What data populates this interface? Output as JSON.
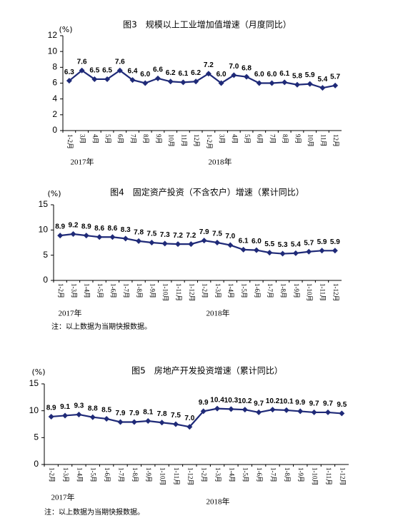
{
  "chart_data": [
    {
      "type": "line",
      "title": "图3　规模以上工业增加值增速（月度同比）",
      "y_unit": "(%)",
      "categories": [
        "1-2月",
        "3月",
        "4月",
        "5月",
        "6月",
        "7月",
        "8月",
        "9月",
        "10月",
        "11月",
        "12月",
        "1-2月",
        "3月",
        "4月",
        "5月",
        "6月",
        "7月",
        "8月",
        "9月",
        "10月",
        "11月",
        "12月"
      ],
      "year_labels": [
        "2017年",
        "2018年"
      ],
      "values": [
        6.3,
        7.6,
        6.5,
        6.5,
        7.6,
        6.4,
        6.0,
        6.6,
        6.2,
        6.1,
        6.2,
        7.2,
        6.0,
        7.0,
        6.8,
        6.0,
        6.0,
        6.1,
        5.8,
        5.9,
        5.4,
        5.7
      ],
      "value_labels": [
        "6.3",
        "7.6",
        "6.5",
        "6.5",
        "7.6",
        "6.4",
        "6.0",
        "6.6",
        "6.2",
        "6.1",
        "6.2",
        "7.2",
        "6.0",
        "7.0",
        "6.8",
        "6.0",
        "6.0",
        "6.1",
        "5.8",
        "5.9",
        "5.4",
        "5.7"
      ],
      "color": "#1f2a78",
      "ylim": [
        0,
        12
      ],
      "yticks": [
        0,
        2,
        4,
        6,
        8,
        10,
        12
      ]
    },
    {
      "type": "line",
      "title": "图4　固定资产投资（不含农户）增速（累计同比）",
      "y_unit": "(%)",
      "categories": [
        "1-2月",
        "1-3月",
        "1-4月",
        "1-5月",
        "1-6月",
        "1-7月",
        "1-8月",
        "1-9月",
        "1-10月",
        "1-11月",
        "1-12月",
        "1-2月",
        "1-3月",
        "1-4月",
        "1-5月",
        "1-6月",
        "1-7月",
        "1-8月",
        "1-9月",
        "1-10月",
        "1-11月",
        "1-12月"
      ],
      "year_labels": [
        "2017年",
        "2018年"
      ],
      "values": [
        8.9,
        9.2,
        8.9,
        8.6,
        8.6,
        8.3,
        7.8,
        7.5,
        7.3,
        7.2,
        7.2,
        7.9,
        7.5,
        7.0,
        6.1,
        6.0,
        5.5,
        5.3,
        5.4,
        5.7,
        5.9,
        5.9
      ],
      "value_labels": [
        "8.9",
        "9.2",
        "8.9",
        "8.6",
        "8.6",
        "8.3",
        "7.8",
        "7.5",
        "7.3",
        "7.2",
        "7.2",
        "7.9",
        "7.5",
        "7.0",
        "6.1",
        "6.0",
        "5.5",
        "5.3",
        "5.4",
        "5.7",
        "5.9",
        "5.9"
      ],
      "color": "#1f2a78",
      "ylim": [
        0,
        15
      ],
      "yticks": [
        0,
        5,
        10,
        15
      ],
      "note": "注：以上数据为当期快报数据。"
    },
    {
      "type": "line",
      "title": "图5　房地产开发投资增速（累计同比）",
      "y_unit": "(%)",
      "categories": [
        "1-2月",
        "1-3月",
        "1-4月",
        "1-5月",
        "1-6月",
        "1-7月",
        "1-8月",
        "1-9月",
        "1-10月",
        "1-11月",
        "1-12月",
        "1-2月",
        "1-3月",
        "1-4月",
        "1-5月",
        "1-6月",
        "1-7月",
        "1-8月",
        "1-9月",
        "1-10月",
        "1-11月",
        "1-12月"
      ],
      "year_labels": [
        "2017年",
        "2018年"
      ],
      "values": [
        8.9,
        9.1,
        9.3,
        8.8,
        8.5,
        7.9,
        7.9,
        8.1,
        7.8,
        7.5,
        7.0,
        9.9,
        10.4,
        10.3,
        10.2,
        9.7,
        10.2,
        10.1,
        9.9,
        9.7,
        9.7,
        9.5
      ],
      "value_labels": [
        "8.9",
        "9.1",
        "9.3",
        "8.8",
        "8.5",
        "7.9",
        "7.9",
        "8.1",
        "7.8",
        "7.5",
        "7.0",
        "9.9",
        "10.4",
        "10.3",
        "10.2",
        "9.7",
        "10.2",
        "10.1",
        "9.9",
        "9.7",
        "9.7",
        "9.5"
      ],
      "color": "#1f2a78",
      "ylim": [
        0,
        15
      ],
      "yticks": [
        0,
        5,
        10,
        15
      ],
      "note": "注：以上数据为当期快报数据。"
    }
  ]
}
